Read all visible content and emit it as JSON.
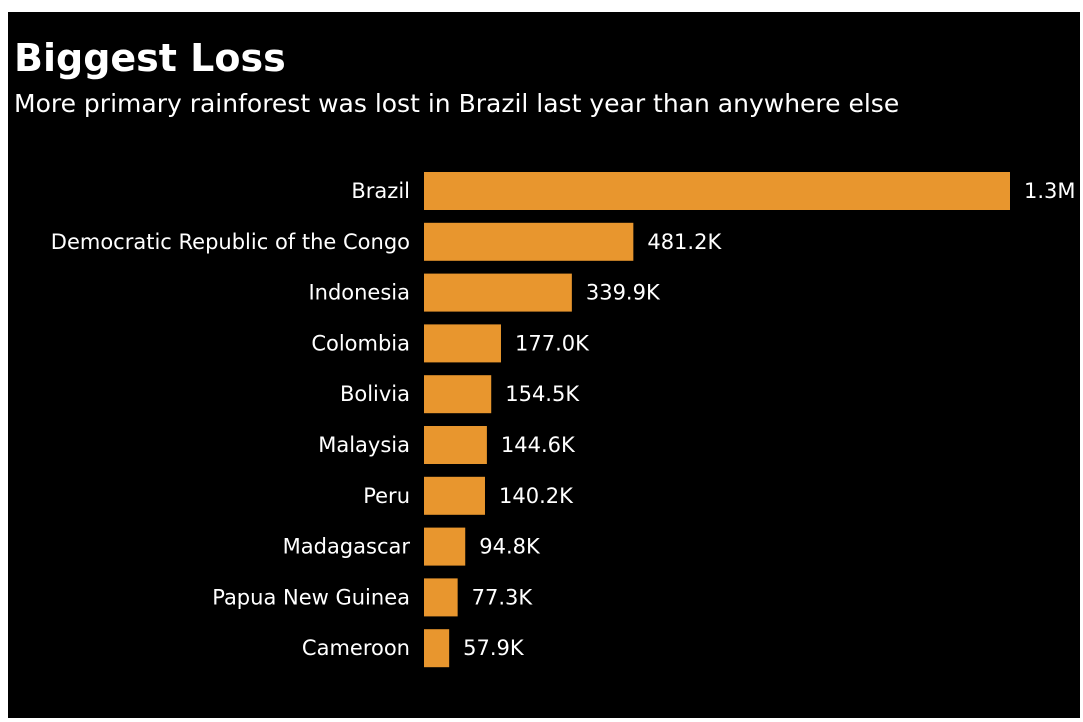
{
  "chart_data": {
    "type": "bar",
    "orientation": "horizontal",
    "title": "Biggest Loss",
    "subtitle": "More primary rainforest was lost in Brazil last year than anywhere else",
    "categories": [
      "Brazil",
      "Democratic Republic of the Congo",
      "Indonesia",
      "Colombia",
      "Bolivia",
      "Malaysia",
      "Peru",
      "Madagascar",
      "Papua New Guinea",
      "Cameroon"
    ],
    "values": [
      1347132,
      481248,
      339888,
      176977,
      154536,
      144571,
      140198,
      94805,
      77349,
      57856
    ],
    "value_labels": [
      "1.3M",
      "481.2K",
      "339.9K",
      "177.0K",
      "154.5K",
      "144.6K",
      "140.2K",
      "94.8K",
      "77.3K",
      "57.9K"
    ],
    "xlim": [
      0,
      1347132
    ],
    "grid": false,
    "legend": "none",
    "colors": {
      "background": "#000000",
      "bar": "#e8962e",
      "text": "#ffffff"
    }
  }
}
